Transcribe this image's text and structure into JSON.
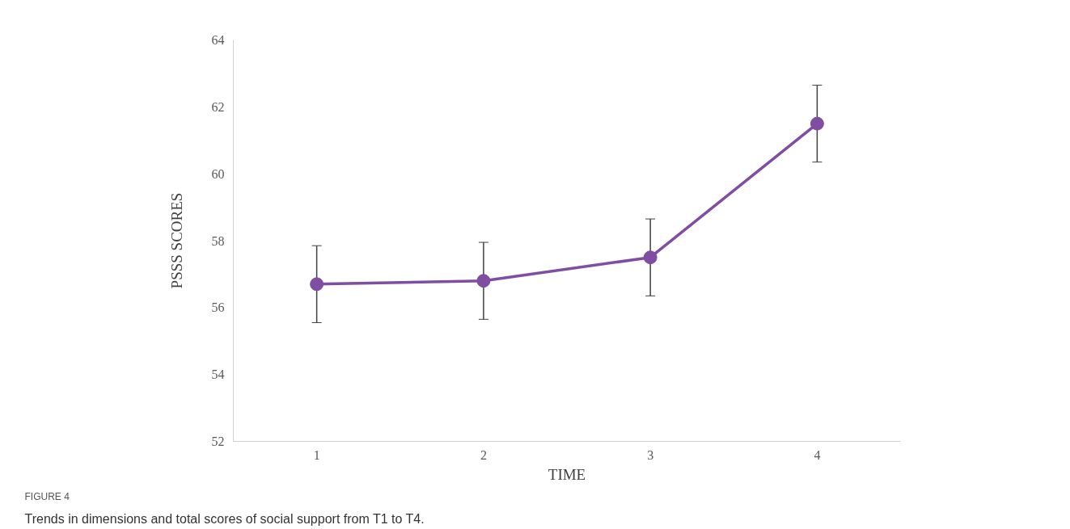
{
  "chart_data": {
    "type": "line",
    "xlabel": "TIME",
    "ylabel": "PSSS SCORES",
    "categories": [
      "1",
      "2",
      "3",
      "4"
    ],
    "series": [
      {
        "color": "#7f4ea3",
        "values": [
          56.7,
          56.8,
          57.5,
          61.5
        ],
        "errors": [
          1.15,
          1.15,
          1.15,
          1.15
        ]
      }
    ],
    "ylim": [
      52,
      64
    ],
    "yticks": [
      52,
      54,
      56,
      58,
      60,
      62,
      64
    ],
    "grid": false,
    "marker": "circle",
    "line_style": "solid",
    "annotations": [
      "FIGURE 4",
      "Trends in dimensions and total scores of social support from T1 to T4."
    ]
  }
}
